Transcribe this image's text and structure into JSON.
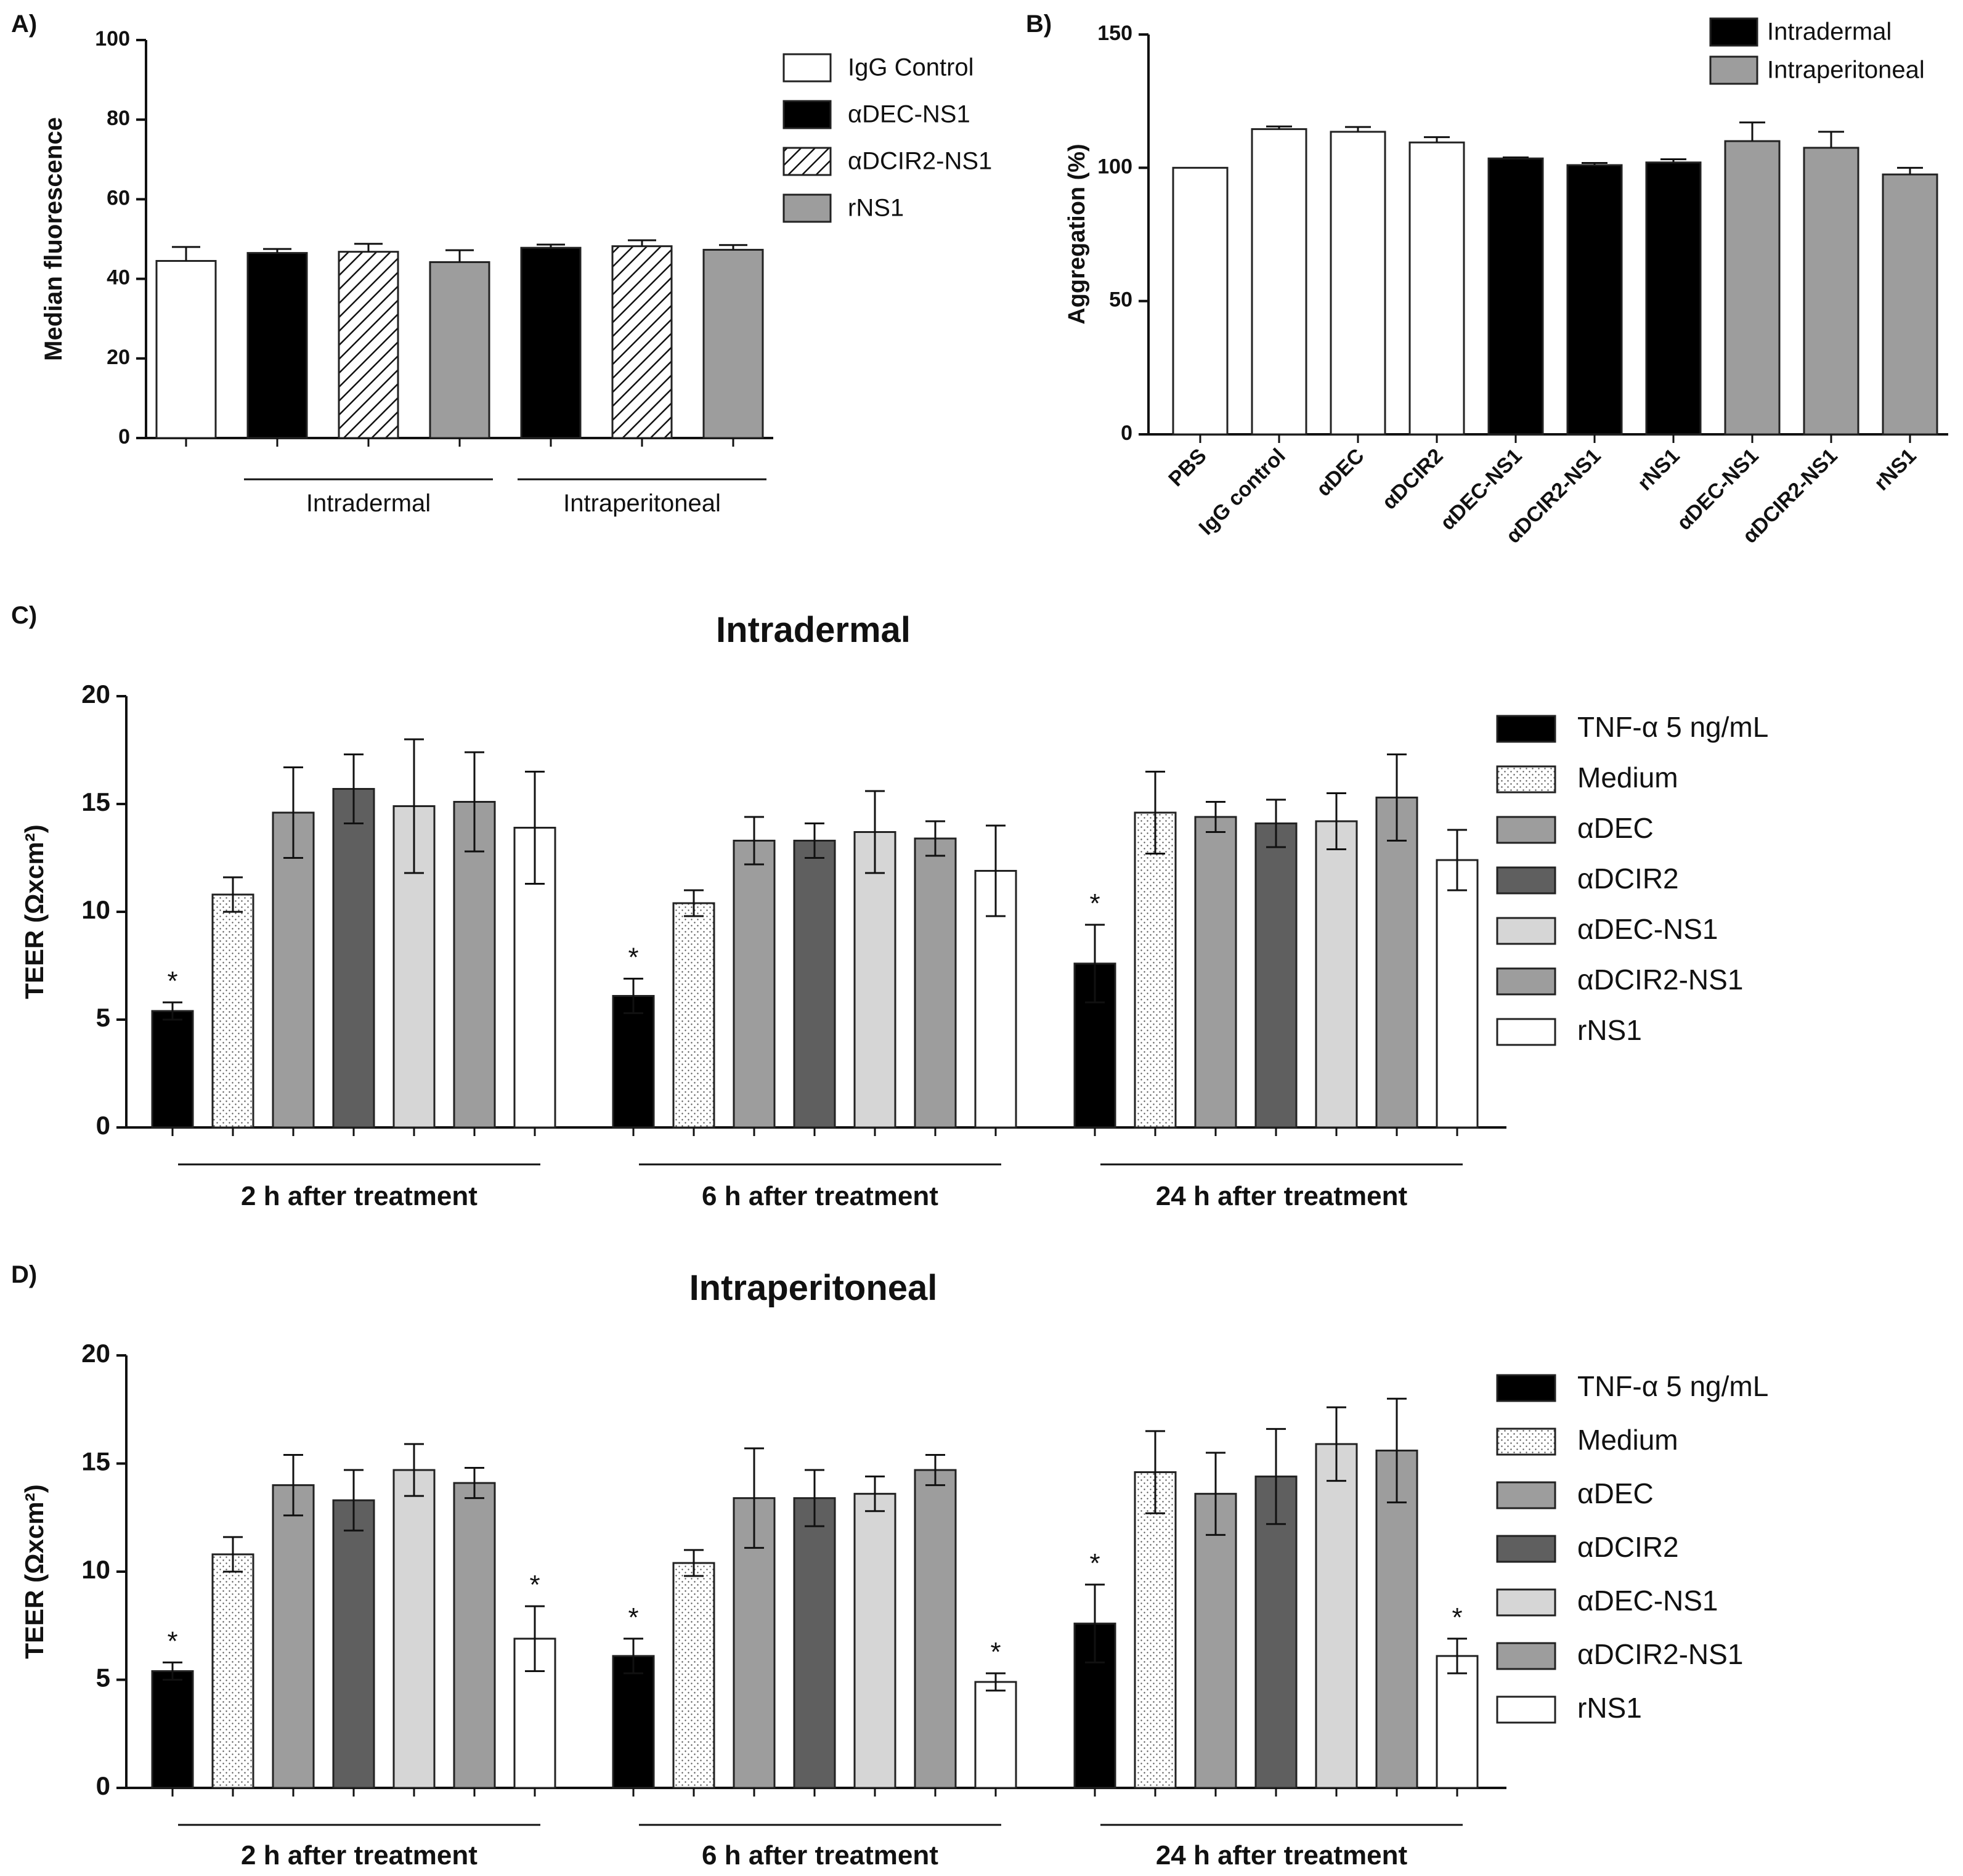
{
  "figure_name": "four-panel bar chart figure",
  "chart_data": [
    {
      "id": "A",
      "panel_label": "A)",
      "type": "bar",
      "title": "",
      "ylabel": "Median fluorescence",
      "ylim": [
        0,
        100
      ],
      "yticks": [
        0,
        20,
        40,
        60,
        80,
        100
      ],
      "legend": [
        "IgG Control",
        "αDEC-NS1",
        "αDCIR2-NS1",
        "rNS1"
      ],
      "legend_styles": [
        "white",
        "black",
        "hatch",
        "gray"
      ],
      "bars": [
        {
          "series": "IgG Control",
          "style": "white",
          "value": 44.5,
          "err": 3.5
        },
        {
          "series": "αDEC-NS1",
          "style": "black",
          "value": 46.5,
          "err": 1.0
        },
        {
          "series": "αDCIR2-NS1",
          "style": "hatch",
          "value": 46.8,
          "err": 2.0
        },
        {
          "series": "rNS1",
          "style": "gray",
          "value": 44.2,
          "err": 3.0
        },
        {
          "series": "αDEC-NS1",
          "style": "black",
          "value": 47.8,
          "err": 0.8
        },
        {
          "series": "αDCIR2-NS1",
          "style": "hatch",
          "value": 48.2,
          "err": 1.5
        },
        {
          "series": "rNS1",
          "style": "gray",
          "value": 47.3,
          "err": 1.2
        }
      ],
      "groups": [
        {
          "label": "Intradermal",
          "from": 1,
          "to": 3
        },
        {
          "label": "Intraperitoneal",
          "from": 4,
          "to": 6
        }
      ]
    },
    {
      "id": "B",
      "panel_label": "B)",
      "type": "bar",
      "title": "",
      "ylabel": "Aggregation (%)",
      "ylim": [
        0,
        150
      ],
      "yticks": [
        0,
        50,
        100,
        150
      ],
      "legend": [
        "Intradermal",
        "Intraperitoneal"
      ],
      "legend_styles": [
        "black",
        "gray"
      ],
      "categories": [
        "PBS",
        "IgG control",
        "αDEC",
        "αDCIR2",
        "αDEC-NS1",
        "αDCIR2-NS1",
        "rNS1",
        "αDEC-NS1",
        "αDCIR2-NS1",
        "rNS1"
      ],
      "bars": [
        {
          "style": "white",
          "value": 100,
          "err": 0
        },
        {
          "style": "white",
          "value": 114.5,
          "err": 1.0
        },
        {
          "style": "white",
          "value": 113.5,
          "err": 1.8
        },
        {
          "style": "white",
          "value": 109.5,
          "err": 2.0
        },
        {
          "style": "black",
          "value": 103.5,
          "err": 0.4
        },
        {
          "style": "black",
          "value": 101.0,
          "err": 0.8
        },
        {
          "style": "black",
          "value": 102.0,
          "err": 1.2
        },
        {
          "style": "gray",
          "value": 110.0,
          "err": 7.0
        },
        {
          "style": "gray",
          "value": 107.5,
          "err": 6.0
        },
        {
          "style": "gray",
          "value": 97.5,
          "err": 2.5
        }
      ]
    },
    {
      "id": "C",
      "panel_label": "C)",
      "type": "bar",
      "title": "Intradermal",
      "ylabel": "TEER (Ωxcm²)",
      "ylim": [
        0,
        20
      ],
      "yticks": [
        0,
        5,
        10,
        15,
        20
      ],
      "series": [
        "TNF-α 5 ng/mL",
        "Medium",
        "αDEC",
        "αDCIR2",
        "αDEC-NS1",
        "αDCIR2-NS1",
        "rNS1"
      ],
      "legend": [
        "TNF-α 5 ng/mL",
        "Medium",
        "αDEC",
        "αDCIR2",
        " αDEC-NS1",
        "αDCIR2-NS1",
        "rNS1"
      ],
      "series_styles": [
        "black",
        "dots",
        "gray",
        "dark",
        "light",
        "gray",
        "white"
      ],
      "groups": [
        "2 h after treatment",
        "6 h after treatment",
        "24 h after treatment"
      ],
      "values": [
        [
          5.4,
          10.8,
          14.6,
          15.7,
          14.9,
          15.1,
          13.9
        ],
        [
          6.1,
          10.4,
          13.3,
          13.3,
          13.7,
          13.4,
          11.9
        ],
        [
          7.6,
          14.6,
          14.4,
          14.1,
          14.2,
          15.3,
          12.4
        ]
      ],
      "errors": [
        [
          0.4,
          0.8,
          2.1,
          1.6,
          3.1,
          2.3,
          2.6
        ],
        [
          0.8,
          0.6,
          1.1,
          0.8,
          1.9,
          0.8,
          2.1
        ],
        [
          1.8,
          1.9,
          0.7,
          1.1,
          1.3,
          2.0,
          1.4
        ]
      ],
      "significance": [
        [
          "*",
          "",
          "",
          "",
          "",
          "",
          ""
        ],
        [
          "*",
          "",
          "",
          "",
          "",
          "",
          ""
        ],
        [
          "*",
          "",
          "",
          "",
          "",
          "",
          ""
        ]
      ]
    },
    {
      "id": "D",
      "panel_label": "D)",
      "type": "bar",
      "title": "Intraperitoneal",
      "ylabel": "TEER (Ωxcm²)",
      "ylim": [
        0,
        20
      ],
      "yticks": [
        0,
        5,
        10,
        15,
        20
      ],
      "series": [
        "TNF-α 5 ng/mL",
        "Medium",
        "αDEC",
        "αDCIR2",
        "αDEC-NS1",
        "αDCIR2-NS1",
        "rNS1"
      ],
      "legend": [
        "TNF-α 5 ng/mL",
        "Medium",
        "αDEC",
        "αDCIR2",
        "αDEC-NS1",
        "αDCIR2-NS1",
        "rNS1"
      ],
      "series_styles": [
        "black",
        "dots",
        "gray",
        "dark",
        "light",
        "gray",
        "white"
      ],
      "groups": [
        "2 h after treatment",
        "6 h after treatment",
        "24 h after treatment"
      ],
      "values": [
        [
          5.4,
          10.8,
          14.0,
          13.3,
          14.7,
          14.1,
          6.9
        ],
        [
          6.1,
          10.4,
          13.4,
          13.4,
          13.6,
          14.7,
          4.9
        ],
        [
          7.6,
          14.6,
          13.6,
          14.4,
          15.9,
          15.6,
          6.1
        ]
      ],
      "errors": [
        [
          0.4,
          0.8,
          1.4,
          1.4,
          1.2,
          0.7,
          1.5
        ],
        [
          0.8,
          0.6,
          2.3,
          1.3,
          0.8,
          0.7,
          0.4
        ],
        [
          1.8,
          1.9,
          1.9,
          2.2,
          1.7,
          2.4,
          0.8
        ]
      ],
      "significance": [
        [
          "*",
          "",
          "",
          "",
          "",
          "",
          "*"
        ],
        [
          "*",
          "",
          "",
          "",
          "",
          "",
          "*"
        ],
        [
          "*",
          "",
          "",
          "",
          "",
          "",
          "*"
        ]
      ]
    }
  ]
}
